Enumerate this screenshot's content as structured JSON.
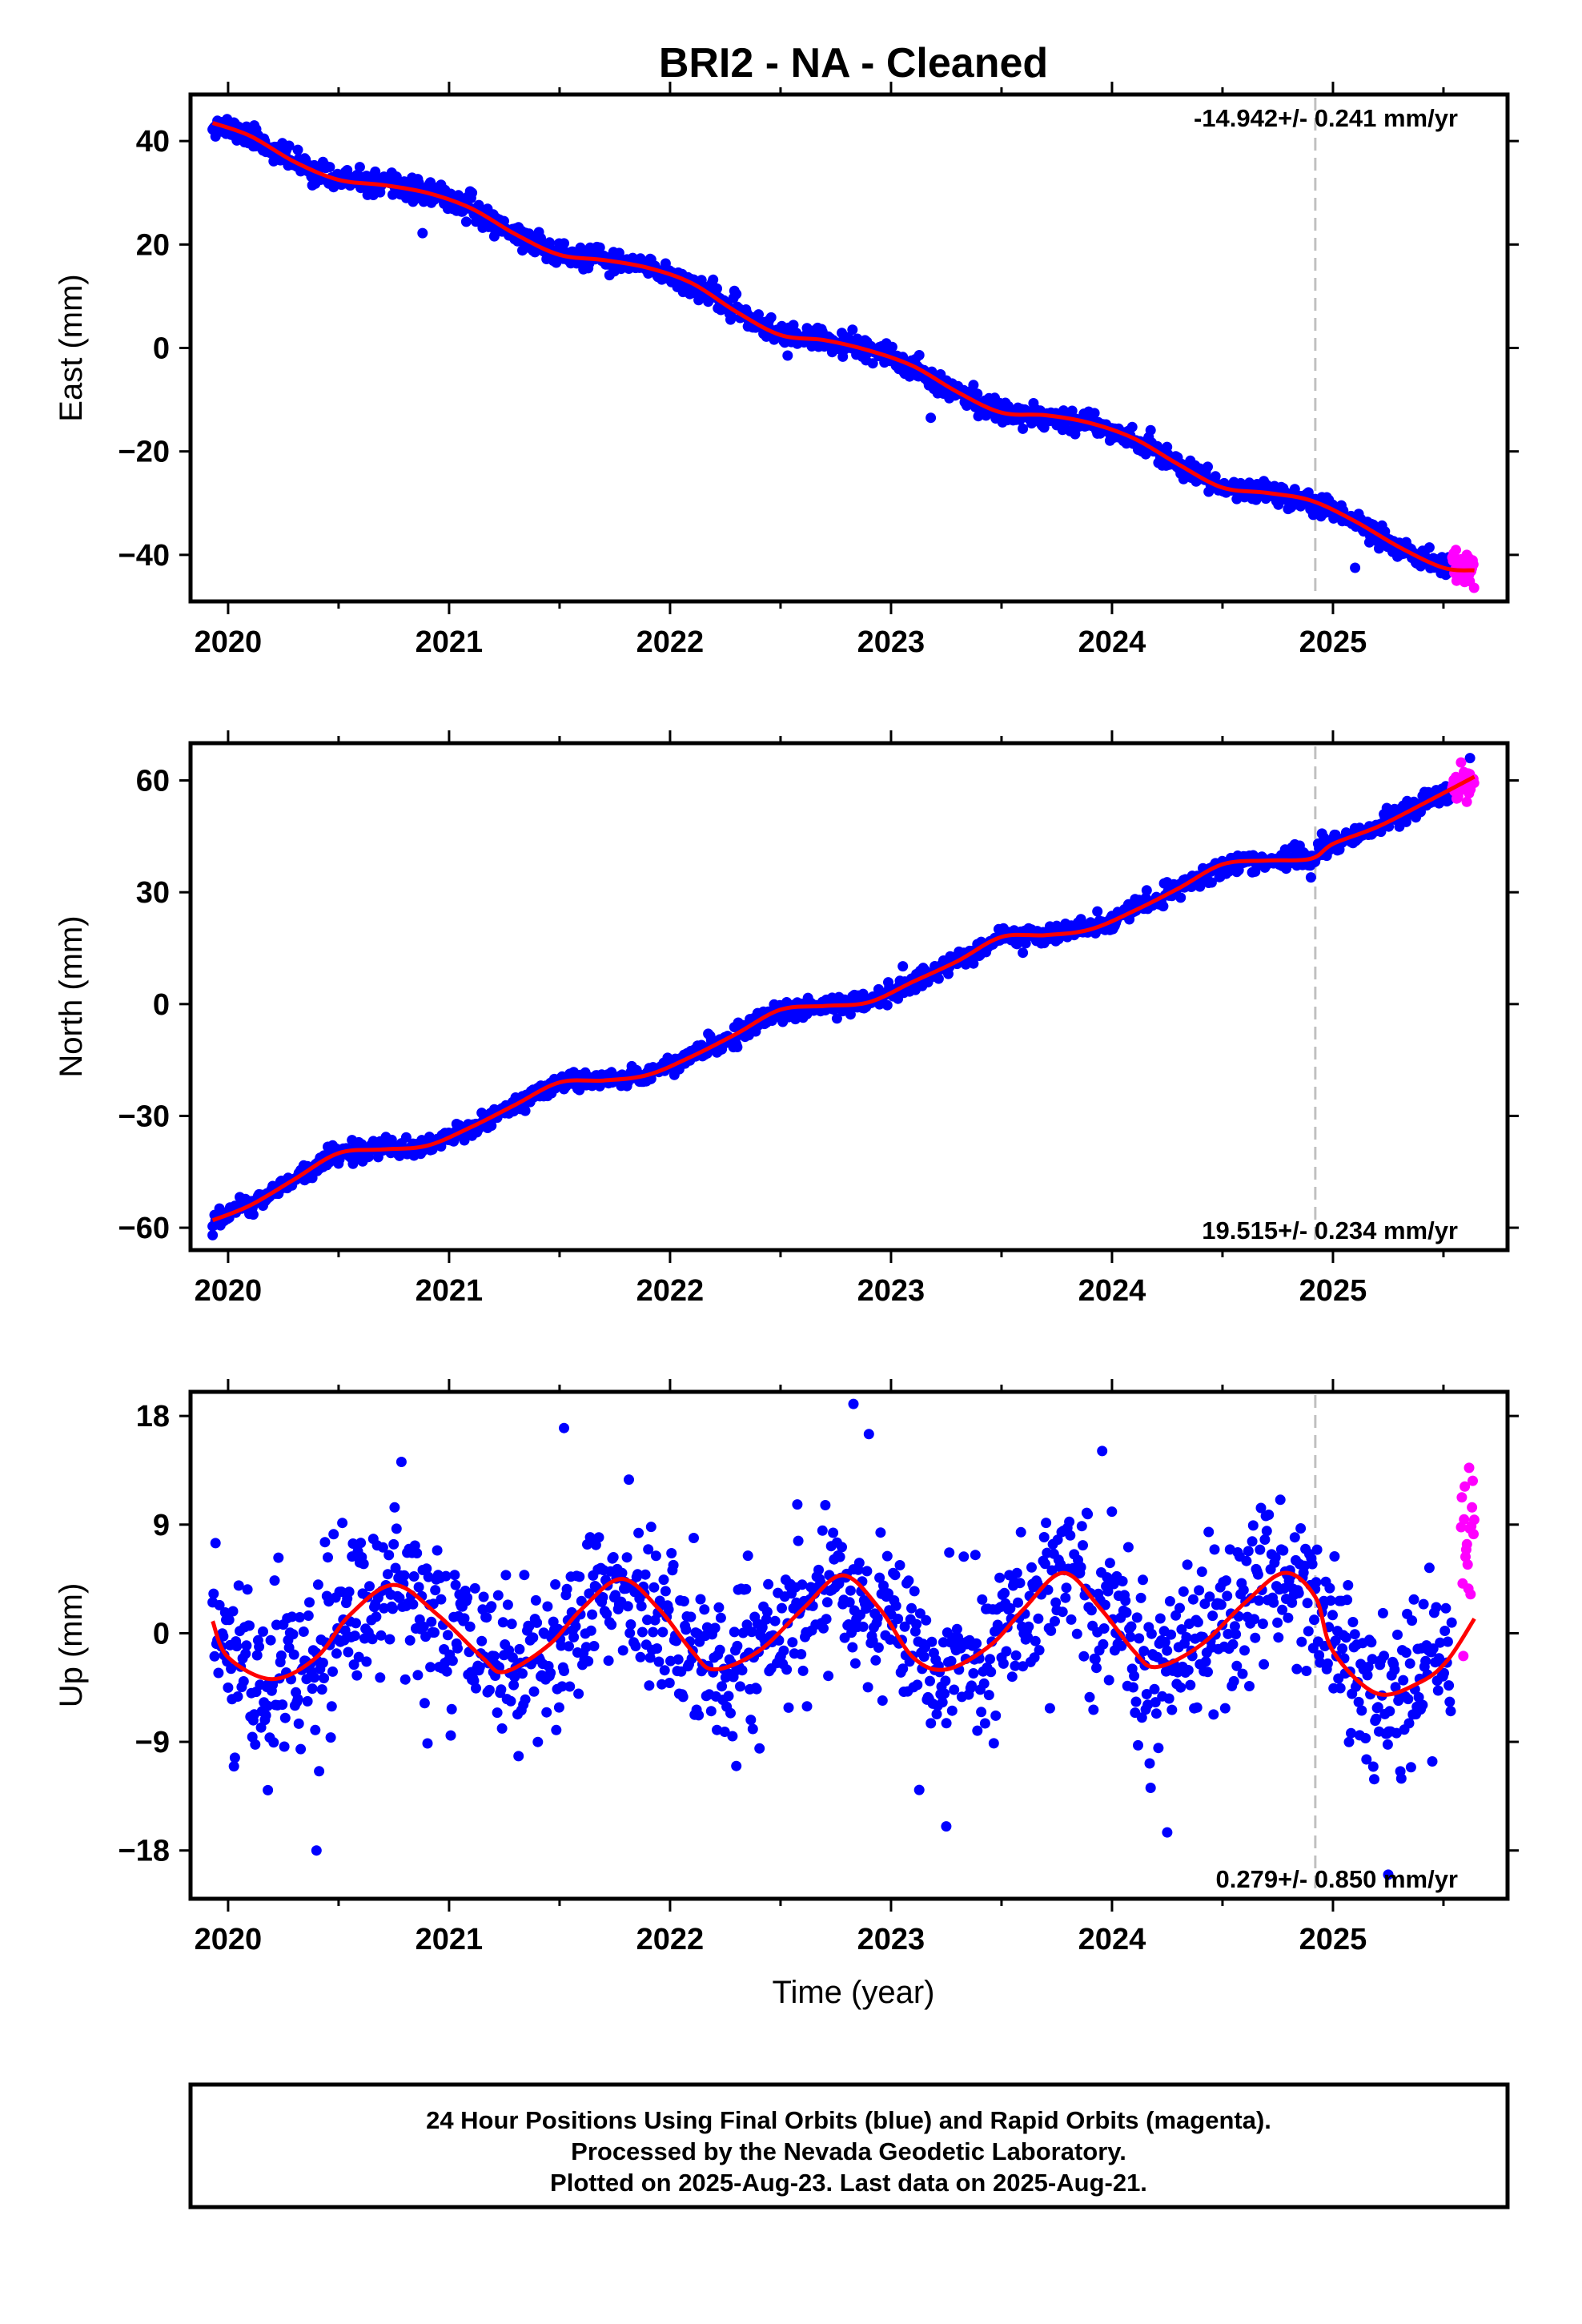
{
  "title": "BRI2  - NA - Cleaned",
  "colors": {
    "final_orbits": "#0000ff",
    "rapid_orbits": "#ff00ff",
    "model": "#ff0000",
    "event_line": "#c0c0c0",
    "frame": "#000000"
  },
  "chart_data": [
    {
      "type": "scatter",
      "component": "east",
      "ylabel": "East (mm)",
      "xlim": [
        2019.83,
        2025.79
      ],
      "ylim": [
        -49,
        49
      ],
      "yticks": [
        {
          "v": 40,
          "label": "40"
        },
        {
          "v": 20,
          "label": "20"
        },
        {
          "v": 0,
          "label": "0"
        },
        {
          "v": -20,
          "label": "−20"
        },
        {
          "v": -40,
          "label": "−40"
        }
      ],
      "xticks": [
        {
          "v": 2020,
          "label": "2020"
        },
        {
          "v": 2021,
          "label": "2021"
        },
        {
          "v": 2022,
          "label": "2022"
        },
        {
          "v": 2023,
          "label": "2023"
        },
        {
          "v": 2024,
          "label": "2024"
        },
        {
          "v": 2025,
          "label": "2025"
        }
      ],
      "rate_text": "-14.942+/- 0.241 mm/yr",
      "rate_position": "top-right",
      "event_line_x": 2024.92,
      "model_knots": [
        [
          2019.93,
          43.5
        ],
        [
          2020.1,
          41
        ],
        [
          2020.3,
          36
        ],
        [
          2020.5,
          32.5
        ],
        [
          2020.7,
          31.5
        ],
        [
          2020.9,
          30
        ],
        [
          2021.1,
          27
        ],
        [
          2021.3,
          22
        ],
        [
          2021.5,
          18
        ],
        [
          2021.7,
          17
        ],
        [
          2021.9,
          15.5
        ],
        [
          2022.1,
          12.5
        ],
        [
          2022.3,
          7
        ],
        [
          2022.5,
          2.5
        ],
        [
          2022.7,
          1.5
        ],
        [
          2022.9,
          -0.5
        ],
        [
          2023.1,
          -3.5
        ],
        [
          2023.3,
          -8.5
        ],
        [
          2023.5,
          -12.5
        ],
        [
          2023.7,
          -13
        ],
        [
          2023.9,
          -14.5
        ],
        [
          2024.1,
          -17.5
        ],
        [
          2024.3,
          -22.5
        ],
        [
          2024.5,
          -27
        ],
        [
          2024.7,
          -28
        ],
        [
          2024.9,
          -29.5
        ],
        [
          2025.1,
          -33.5
        ],
        [
          2025.3,
          -38.5
        ],
        [
          2025.5,
          -42.5
        ],
        [
          2025.64,
          -43
        ]
      ],
      "final_range": [
        2019.93,
        2025.54
      ],
      "rapid_range": [
        2025.54,
        2025.64
      ],
      "noise_sd": 1.1,
      "final_seed": 11,
      "rapid_seed": 12,
      "outliers": [
        [
          2020.88,
          22.2
        ],
        [
          2023.18,
          -13.5
        ],
        [
          2025.1,
          -42.5
        ]
      ]
    },
    {
      "type": "scatter",
      "component": "north",
      "ylabel": "North (mm)",
      "xlim": [
        2019.83,
        2025.79
      ],
      "ylim": [
        -66,
        70
      ],
      "yticks": [
        {
          "v": 60,
          "label": "60"
        },
        {
          "v": 30,
          "label": "30"
        },
        {
          "v": 0,
          "label": "0"
        },
        {
          "v": -30,
          "label": "−30"
        },
        {
          "v": -60,
          "label": "−60"
        }
      ],
      "xticks": [
        {
          "v": 2020,
          "label": "2020"
        },
        {
          "v": 2021,
          "label": "2021"
        },
        {
          "v": 2022,
          "label": "2022"
        },
        {
          "v": 2023,
          "label": "2023"
        },
        {
          "v": 2024,
          "label": "2024"
        },
        {
          "v": 2025,
          "label": "2025"
        }
      ],
      "rate_text": "19.515+/- 0.234 mm/yr",
      "rate_position": "bottom-right",
      "event_line_x": 2024.92,
      "model_knots": [
        [
          2019.93,
          -58
        ],
        [
          2020.1,
          -54
        ],
        [
          2020.3,
          -47
        ],
        [
          2020.5,
          -40
        ],
        [
          2020.7,
          -39
        ],
        [
          2020.9,
          -38
        ],
        [
          2021.1,
          -33
        ],
        [
          2021.3,
          -27
        ],
        [
          2021.5,
          -21
        ],
        [
          2021.7,
          -20.5
        ],
        [
          2021.9,
          -19
        ],
        [
          2022.1,
          -14
        ],
        [
          2022.3,
          -8
        ],
        [
          2022.5,
          -1.5
        ],
        [
          2022.7,
          -0.5
        ],
        [
          2022.9,
          0.5
        ],
        [
          2023.1,
          6
        ],
        [
          2023.3,
          11.5
        ],
        [
          2023.5,
          18
        ],
        [
          2023.7,
          18.5
        ],
        [
          2023.9,
          20
        ],
        [
          2024.1,
          25
        ],
        [
          2024.3,
          31
        ],
        [
          2024.5,
          37.5
        ],
        [
          2024.7,
          38.5
        ],
        [
          2024.9,
          39
        ],
        [
          2025.0,
          43
        ],
        [
          2025.2,
          47.5
        ],
        [
          2025.4,
          53.5
        ],
        [
          2025.64,
          61
        ]
      ],
      "final_range": [
        2019.93,
        2025.54
      ],
      "rapid_range": [
        2025.54,
        2025.64
      ],
      "noise_sd": 1.3,
      "final_seed": 21,
      "rapid_seed": 22,
      "outliers": [
        [
          2019.93,
          -62
        ],
        [
          2024.9,
          34
        ],
        [
          2025.62,
          66
        ]
      ]
    },
    {
      "type": "scatter",
      "component": "up",
      "ylabel": "Up (mm)",
      "xlabel": "Time (year)",
      "xlim": [
        2019.83,
        2025.79
      ],
      "ylim": [
        -22,
        20
      ],
      "yticks": [
        {
          "v": 18,
          "label": "18"
        },
        {
          "v": 9,
          "label": "9"
        },
        {
          "v": 0,
          "label": "0"
        },
        {
          "v": -9,
          "label": "−9"
        },
        {
          "v": -18,
          "label": "−18"
        }
      ],
      "xticks": [
        {
          "v": 2020,
          "label": "2020"
        },
        {
          "v": 2021,
          "label": "2021"
        },
        {
          "v": 2022,
          "label": "2022"
        },
        {
          "v": 2023,
          "label": "2023"
        },
        {
          "v": 2024,
          "label": "2024"
        },
        {
          "v": 2025,
          "label": "2025"
        }
      ],
      "rate_text": "0.279+/- 0.850 mm/yr",
      "rate_position": "bottom-right",
      "event_line_x": 2024.92,
      "model_knots": [
        [
          2019.93,
          1
        ],
        [
          2020.0,
          -2
        ],
        [
          2020.2,
          -3.8
        ],
        [
          2020.4,
          -2
        ],
        [
          2020.55,
          1.5
        ],
        [
          2020.75,
          4
        ],
        [
          2020.95,
          1.5
        ],
        [
          2021.15,
          -2
        ],
        [
          2021.25,
          -3.2
        ],
        [
          2021.45,
          -1
        ],
        [
          2021.6,
          2
        ],
        [
          2021.78,
          4.5
        ],
        [
          2021.95,
          2
        ],
        [
          2022.1,
          -1.5
        ],
        [
          2022.2,
          -3
        ],
        [
          2022.4,
          -1.5
        ],
        [
          2022.6,
          2
        ],
        [
          2022.78,
          4.8
        ],
        [
          2022.95,
          2
        ],
        [
          2023.1,
          -2
        ],
        [
          2023.25,
          -3
        ],
        [
          2023.45,
          -1
        ],
        [
          2023.6,
          2
        ],
        [
          2023.78,
          5
        ],
        [
          2023.95,
          2
        ],
        [
          2024.1,
          -1.5
        ],
        [
          2024.2,
          -2.8
        ],
        [
          2024.4,
          -1
        ],
        [
          2024.6,
          2.5
        ],
        [
          2024.78,
          5
        ],
        [
          2024.92,
          3
        ],
        [
          2025.0,
          -1.5
        ],
        [
          2025.2,
          -5
        ],
        [
          2025.4,
          -4
        ],
        [
          2025.52,
          -2.2
        ],
        [
          2025.64,
          1.2
        ]
      ],
      "final_range": [
        2019.93,
        2025.54
      ],
      "rapid_range": [
        2025.58,
        2025.64
      ],
      "rapid_offset": 8,
      "noise_sd": 3.4,
      "final_seed": 31,
      "rapid_seed": 32,
      "outliers": [
        [
          2022.83,
          19
        ],
        [
          2021.52,
          17
        ],
        [
          2022.9,
          16.5
        ],
        [
          2020.4,
          -18
        ],
        [
          2025.25,
          -20
        ],
        [
          2024.25,
          -16.5
        ],
        [
          2023.25,
          -16
        ],
        [
          2020.18,
          -13
        ],
        [
          2022.3,
          -11
        ]
      ]
    }
  ],
  "footer": {
    "lines": [
      "24 Hour Positions Using Final Orbits (blue) and Rapid Orbits (magenta).",
      "Processed by the Nevada Geodetic Laboratory.",
      "Plotted on 2025-Aug-23. Last data on 2025-Aug-21."
    ]
  }
}
